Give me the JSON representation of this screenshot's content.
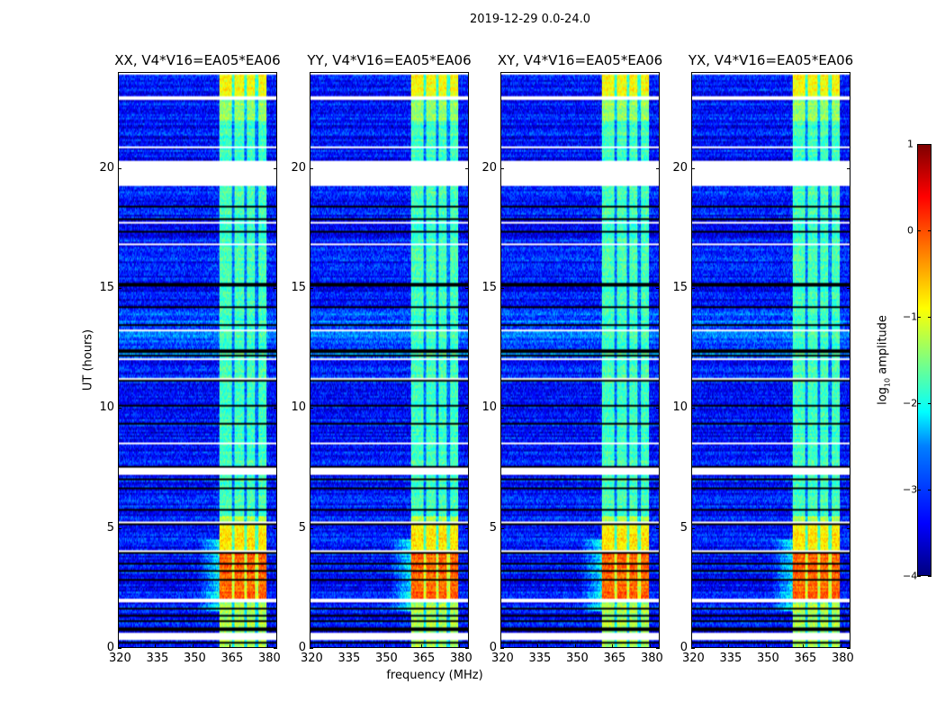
{
  "chart_data": {
    "type": "heatmap",
    "title": "2019-12-29 0.0-24.0",
    "xlabel": "frequency (MHz)",
    "ylabel": "UT (hours)",
    "xlim": [
      320,
      384
    ],
    "ylim": [
      0,
      24
    ],
    "xticks": [
      "320",
      "335",
      "350",
      "365",
      "380"
    ],
    "xtick_values": [
      320,
      335,
      350,
      365,
      380
    ],
    "yticks": [
      "0",
      "5",
      "10",
      "15",
      "20"
    ],
    "ytick_values": [
      0,
      5,
      10,
      15,
      20
    ],
    "panels": [
      {
        "title": "XX, V4*V16=EA05*EA06"
      },
      {
        "title": "YY, V4*V16=EA05*EA06"
      },
      {
        "title": "XY, V4*V16=EA05*EA06"
      },
      {
        "title": "YX, V4*V16=EA05*EA06"
      }
    ],
    "bright_band_mhz": [
      361,
      380
    ],
    "subband_gaps_mhz": [
      366.5,
      371.5,
      376
    ],
    "peak_time_hours": [
      2.0,
      4.0
    ],
    "flagged_time_ranges_hours": [
      [
        0.3,
        0.55
      ],
      [
        1.85,
        2.0
      ],
      [
        7.2,
        7.4
      ],
      [
        19.3,
        20.3
      ],
      [
        22.9,
        23.0
      ]
    ],
    "colorbar": {
      "label": "log10 amplitude",
      "label_main": "log",
      "label_sub": "10",
      "label_rest": " amplitude",
      "range": [
        -4,
        1
      ],
      "ticks": [
        "1",
        "0",
        "−1",
        "−2",
        "−3",
        "−4"
      ],
      "tick_values": [
        1,
        0,
        -1,
        -2,
        -3,
        -4
      ],
      "colormap": "jet"
    }
  }
}
